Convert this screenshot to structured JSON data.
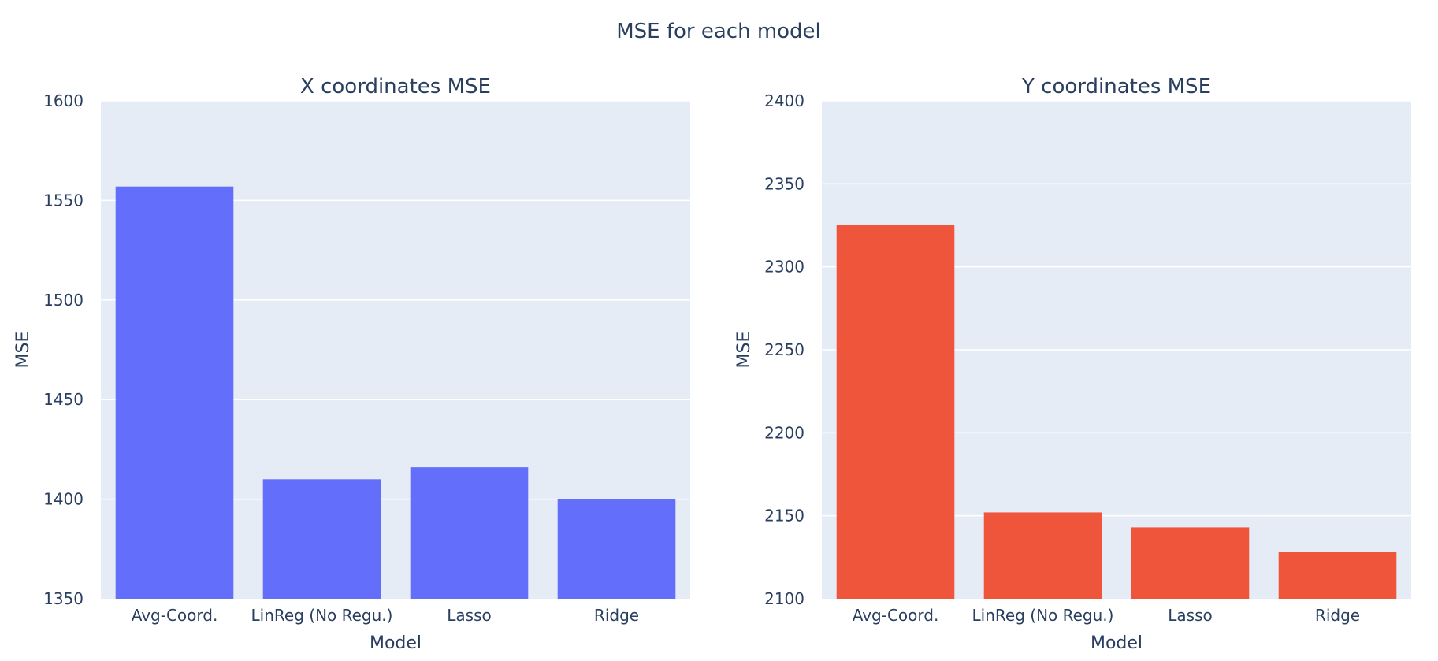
{
  "figure": {
    "title": "MSE for each model"
  },
  "chart_data": [
    {
      "type": "bar",
      "title": "X coordinates MSE",
      "xlabel": "Model",
      "ylabel": "MSE",
      "categories": [
        "Avg-Coord.",
        "LinReg (No Regu.)",
        "Lasso",
        "Ridge"
      ],
      "values": [
        1557,
        1410,
        1416,
        1400
      ],
      "ylim": [
        1350,
        1600
      ],
      "yticks": [
        1350,
        1400,
        1450,
        1500,
        1550,
        1600
      ],
      "color": "#636efa",
      "grid": true
    },
    {
      "type": "bar",
      "title": "Y coordinates MSE",
      "xlabel": "Model",
      "ylabel": "MSE",
      "categories": [
        "Avg-Coord.",
        "LinReg (No Regu.)",
        "Lasso",
        "Ridge"
      ],
      "values": [
        2325,
        2152,
        2143,
        2128
      ],
      "ylim": [
        2100,
        2400
      ],
      "yticks": [
        2100,
        2150,
        2200,
        2250,
        2300,
        2350,
        2400
      ],
      "color": "#ef553b",
      "grid": true
    }
  ],
  "style": {
    "plot_background": "#e5ecf6",
    "grid_color": "#ffffff",
    "text_color": "#2a3f5f"
  }
}
